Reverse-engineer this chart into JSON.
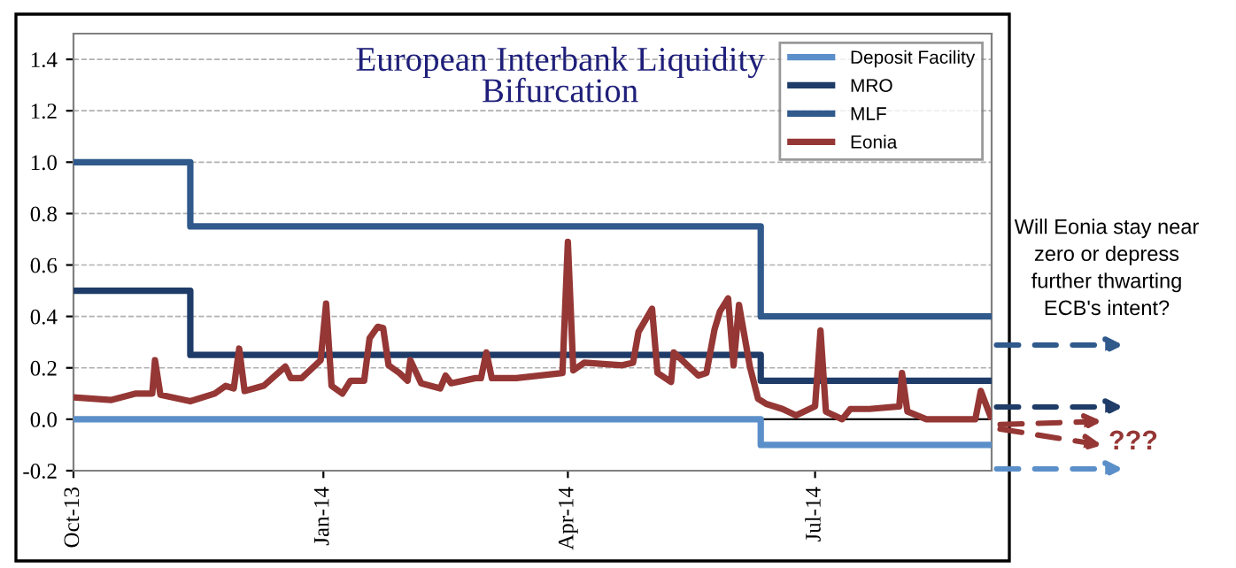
{
  "chart_data": {
    "type": "line",
    "title": "European Interbank Liquidity\nBifurcation",
    "xlim": [
      "2013-10-01",
      "2014-09-04"
    ],
    "xticks": [
      {
        "value": "2013-10-01",
        "label": "Oct-13"
      },
      {
        "value": "2014-01-01",
        "label": "Jan-14"
      },
      {
        "value": "2014-04-01",
        "label": "Apr-14"
      },
      {
        "value": "2014-07-01",
        "label": "Jul-14"
      }
    ],
    "ylim": [
      -0.2,
      1.5
    ],
    "yticks": [
      {
        "value": -0.2,
        "label": "-0.2"
      },
      {
        "value": 0,
        "label": "0.0"
      },
      {
        "value": 0.2,
        "label": "0.2"
      },
      {
        "value": 0.4,
        "label": "0.4"
      },
      {
        "value": 0.6,
        "label": "0.6"
      },
      {
        "value": 0.8,
        "label": "0.8"
      },
      {
        "value": 1.0,
        "label": "1.0"
      },
      {
        "value": 1.2,
        "label": "1.2"
      },
      {
        "value": 1.4,
        "label": "1.4"
      }
    ],
    "grid": "y",
    "legend": "top right",
    "series": [
      {
        "name": "Deposit Facility",
        "type": "step",
        "color": "#5b8fc9",
        "x": [
          "2013-10-01",
          "2014-06-11",
          "2014-09-04"
        ],
        "values": [
          0,
          -0.1,
          -0.1
        ]
      },
      {
        "name": "MRO",
        "type": "step",
        "color": "#1f3c68",
        "x": [
          "2013-10-01",
          "2013-11-13",
          "2014-06-11",
          "2014-09-04"
        ],
        "values": [
          0.5,
          0.25,
          0.15,
          0.15
        ]
      },
      {
        "name": "MLF",
        "type": "step",
        "color": "#30598c",
        "x": [
          "2013-10-01",
          "2013-11-13",
          "2014-06-11",
          "2014-09-04"
        ],
        "values": [
          1.0,
          0.75,
          0.4,
          0.4
        ]
      },
      {
        "name": "Eonia",
        "color": "#953735",
        "x": [
          "2013-10-01",
          "2013-10-15",
          "2013-10-24",
          "2013-10-30",
          "2013-10-31",
          "2013-11-02",
          "2013-11-13",
          "2013-11-22",
          "2013-11-26",
          "2013-11-29",
          "2013-12-01",
          "2013-12-03",
          "2013-12-10",
          "2013-12-18",
          "2013-12-20",
          "2013-12-24",
          "2013-12-31",
          "2014-01-02",
          "2014-01-04",
          "2014-01-08",
          "2014-01-11",
          "2014-01-16",
          "2014-01-18",
          "2014-01-21",
          "2014-01-23",
          "2014-01-25",
          "2014-01-29",
          "2014-02-01",
          "2014-02-02",
          "2014-02-06",
          "2014-02-13",
          "2014-02-15",
          "2014-02-17",
          "2014-02-26",
          "2014-02-28",
          "2014-03-02",
          "2014-03-04",
          "2014-03-13",
          "2014-03-30",
          "2014-04-01",
          "2014-04-03",
          "2014-04-07",
          "2014-04-21",
          "2014-04-25",
          "2014-04-27",
          "2014-05-02",
          "2014-05-04",
          "2014-05-09",
          "2014-05-10",
          "2014-05-14",
          "2014-05-19",
          "2014-05-22",
          "2014-05-25",
          "2014-05-27",
          "2014-05-30",
          "2014-06-01",
          "2014-06-03",
          "2014-06-07",
          "2014-06-10",
          "2014-06-13",
          "2014-06-19",
          "2014-06-24",
          "2014-07-01",
          "2014-07-03",
          "2014-07-05",
          "2014-07-11",
          "2014-07-14",
          "2014-07-21",
          "2014-08-01",
          "2014-08-02",
          "2014-08-04",
          "2014-08-11",
          "2014-08-29",
          "2014-08-31",
          "2014-09-04"
        ],
        "values": [
          0.085,
          0.075,
          0.1,
          0.1,
          0.23,
          0.095,
          0.07,
          0.1,
          0.13,
          0.12,
          0.275,
          0.11,
          0.13,
          0.205,
          0.16,
          0.16,
          0.23,
          0.45,
          0.13,
          0.1,
          0.15,
          0.15,
          0.315,
          0.36,
          0.355,
          0.21,
          0.18,
          0.15,
          0.23,
          0.14,
          0.12,
          0.17,
          0.14,
          0.16,
          0.16,
          0.26,
          0.16,
          0.16,
          0.18,
          0.69,
          0.19,
          0.22,
          0.21,
          0.22,
          0.34,
          0.43,
          0.18,
          0.145,
          0.26,
          0.22,
          0.17,
          0.18,
          0.35,
          0.42,
          0.47,
          0.21,
          0.445,
          0.205,
          0.08,
          0.06,
          0.04,
          0.015,
          0.05,
          0.345,
          0.03,
          0.0,
          0.04,
          0.04,
          0.05,
          0.18,
          0.03,
          0.0,
          0.0,
          0.11,
          0.0
        ]
      }
    ],
    "annotations": [
      "Will Eonia stay near zero or depress further thwarting ECB's intent?",
      "???"
    ]
  }
}
